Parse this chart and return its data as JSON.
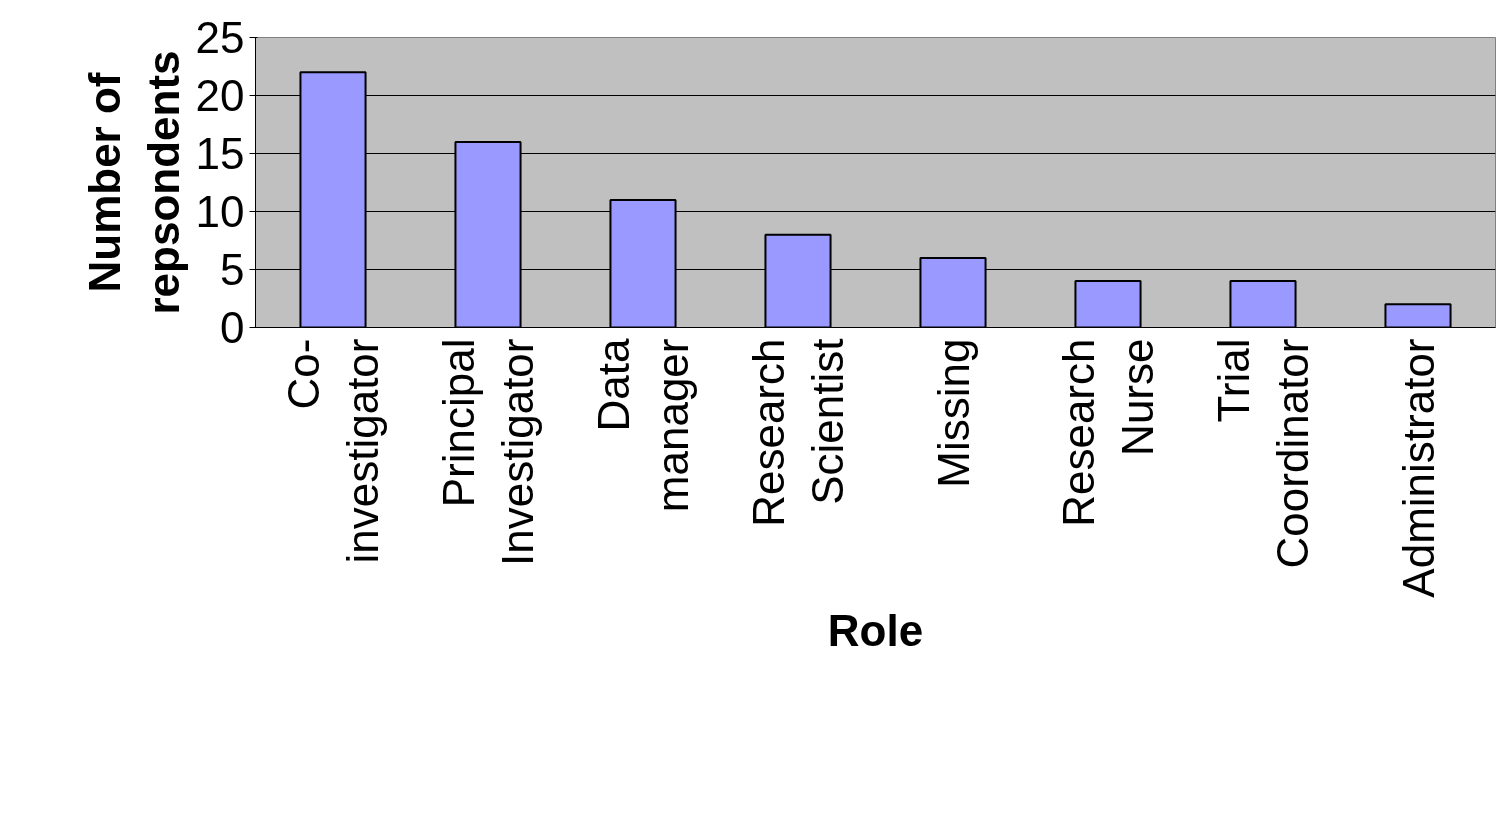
{
  "chart_data": {
    "type": "bar",
    "xlabel": "Role",
    "ylabel": "Number of repsondents",
    "categories": [
      "Co-investigator",
      "Principal Investigator",
      "Data manager",
      "Research Scientist",
      "Missing",
      "Research Nurse",
      "Trial Coordinator",
      "Administrator"
    ],
    "values": [
      22,
      16,
      11,
      8,
      6,
      4,
      4,
      2
    ],
    "color": "#9999ff",
    "ylim": [
      0,
      25
    ],
    "yticks": [
      0,
      5,
      10,
      15,
      20,
      25
    ],
    "grid": "y"
  }
}
